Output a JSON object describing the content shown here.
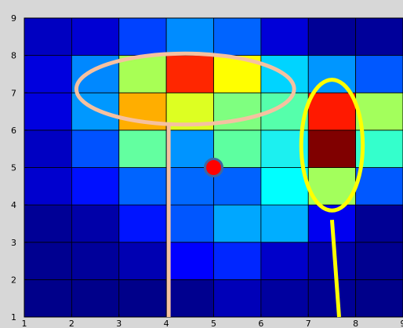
{
  "chart_data": {
    "type": "heatmap",
    "title": "",
    "xlabel": "",
    "ylabel": "",
    "xlim": [
      1,
      9
    ],
    "ylim": [
      1,
      9
    ],
    "xticks": [
      "1",
      "2",
      "3",
      "4",
      "5",
      "6",
      "7",
      "8",
      "9"
    ],
    "yticks": [
      "1",
      "2",
      "3",
      "4",
      "5",
      "6",
      "7",
      "8",
      "9"
    ],
    "colormap": "jet",
    "grid": true,
    "cell_width": 1,
    "cell_height": 1,
    "rows": [
      {
        "y": [
          1,
          2
        ],
        "colors": [
          "#00008a",
          "#00008a",
          "#00008a",
          "#00008f",
          "#0000b8",
          "#00009f",
          "#000095",
          "#00008a"
        ]
      },
      {
        "y": [
          2,
          3
        ],
        "colors": [
          "#000090",
          "#00009a",
          "#0000b2",
          "#0000ff",
          "#0026ff",
          "#0000ca",
          "#0000a9",
          "#000090"
        ]
      },
      {
        "y": [
          3,
          4
        ],
        "colors": [
          "#000096",
          "#0000a8",
          "#0014ff",
          "#0056ff",
          "#00a7ff",
          "#00aeff",
          "#0000f0",
          "#000094"
        ]
      },
      {
        "y": [
          4,
          5
        ],
        "colors": [
          "#0000ce",
          "#0010ff",
          "#0064ff",
          "#0068ff",
          "#0062ff",
          "#00ffff",
          "#a3ff5c",
          "#0058ff"
        ]
      },
      {
        "y": [
          5,
          6
        ],
        "colors": [
          "#0000c2",
          "#0052ff",
          "#63ffa0",
          "#0094ff",
          "#5dffa0",
          "#1cf0f0",
          "#800000",
          "#34ffcc"
        ]
      },
      {
        "y": [
          6,
          7
        ],
        "colors": [
          "#0000df",
          "#0098ff",
          "#ffae00",
          "#ddff22",
          "#7fff80",
          "#55ffab",
          "#ff1900",
          "#a3ff5c"
        ]
      },
      {
        "y": [
          7,
          8
        ],
        "colors": [
          "#0000de",
          "#0088ff",
          "#a8ff55",
          "#ff2600",
          "#ffff00",
          "#00d4ff",
          "#0096ff",
          "#0058ff"
        ]
      },
      {
        "y": [
          8,
          9
        ],
        "colors": [
          "#0000c1",
          "#0000d3",
          "#0042ff",
          "#008cff",
          "#0064ff",
          "#0000d8",
          "#000095",
          "#00009a"
        ]
      }
    ],
    "overlays": [
      {
        "type": "ellipse",
        "cx": 4.4,
        "cy": 7.1,
        "rx": 2.3,
        "ry": 0.95,
        "stroke": "#f5c1a0"
      },
      {
        "type": "line",
        "x1": 4.05,
        "y1": 6.14,
        "x2": 4.05,
        "y2": 1.0,
        "stroke": "#f5c1a0"
      },
      {
        "type": "ellipse",
        "cx": 7.5,
        "cy": 5.6,
        "rx": 0.65,
        "ry": 1.75,
        "stroke": "#ffff00"
      },
      {
        "type": "line",
        "x1": 7.5,
        "y1": 3.6,
        "x2": 7.65,
        "y2": 1.0,
        "stroke": "#ffff00"
      },
      {
        "type": "marker",
        "x": 5.0,
        "y": 5.0,
        "fill": "#ff0000",
        "stroke": "#3f66a0"
      }
    ]
  }
}
